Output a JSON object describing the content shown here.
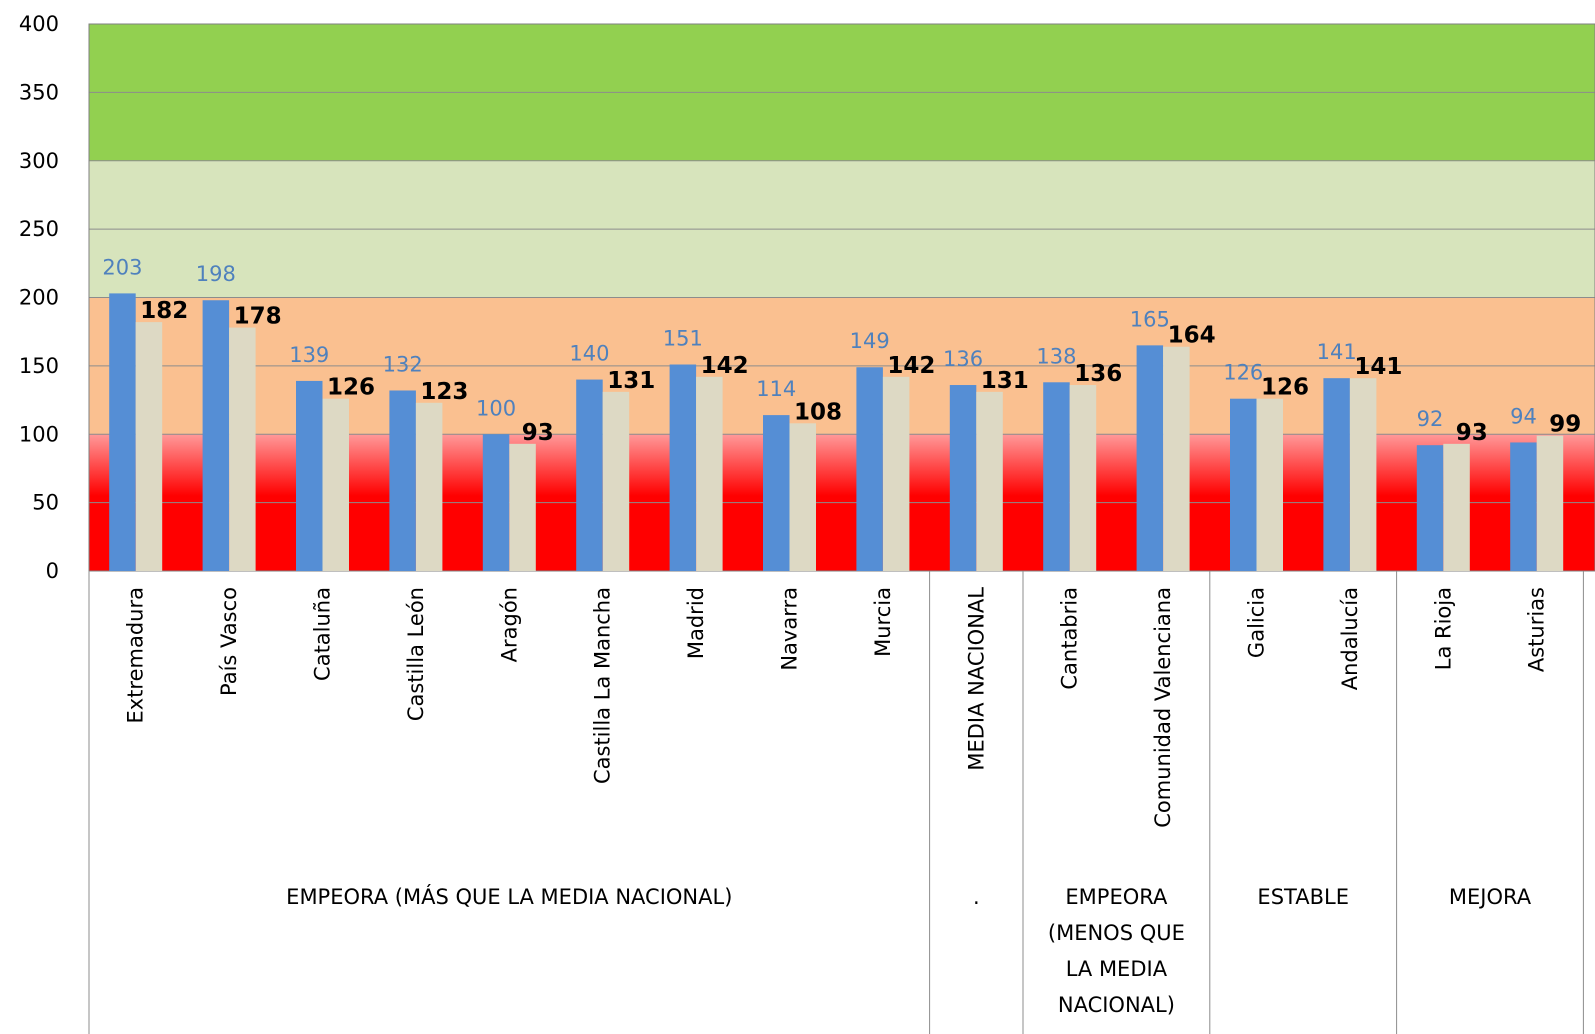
{
  "chart_data": {
    "type": "bar",
    "ylim": [
      0,
      400
    ],
    "yticks": [
      0,
      50,
      100,
      150,
      200,
      250,
      300,
      350,
      400
    ],
    "categories": [
      "Extremadura",
      "País Vasco",
      "Cataluña",
      "Castilla León",
      "Aragón",
      "Castilla La Mancha",
      "Madrid",
      "Navarra",
      "Murcia",
      "MEDIA NACIONAL",
      "Cantabria",
      "Comunidad Valenciana",
      "Galicia",
      "Andalucía",
      "La Rioja",
      "Asturias"
    ],
    "series": [
      {
        "values": [
          203,
          198,
          139,
          132,
          100,
          140,
          151,
          114,
          149,
          136,
          138,
          165,
          126,
          141,
          92,
          94
        ],
        "color": "#558ed5",
        "label_color": "#4f81bd"
      },
      {
        "values": [
          182,
          178,
          126,
          123,
          93,
          131,
          142,
          108,
          142,
          131,
          136,
          164,
          126,
          141,
          93,
          99
        ],
        "color": "#ddd9c4",
        "label_color": "#000000"
      }
    ],
    "groups": [
      {
        "label_lines": [
          "EMPEORA (MÁS QUE LA MEDIA NACIONAL)"
        ],
        "start": 0,
        "end": 8
      },
      {
        "label_lines": [
          "."
        ],
        "start": 9,
        "end": 9
      },
      {
        "label_lines": [
          "EMPEORA",
          "(MENOS QUE",
          "LA MEDIA",
          "NACIONAL)"
        ],
        "start": 10,
        "end": 11
      },
      {
        "label_lines": [
          "ESTABLE"
        ],
        "start": 12,
        "end": 13
      },
      {
        "label_lines": [
          "MEJORA"
        ],
        "start": 14,
        "end": 15
      }
    ],
    "background_bands": [
      {
        "from": 300,
        "to": 400,
        "color": "#92d050"
      },
      {
        "from": 200,
        "to": 300,
        "color": "#d7e4bc"
      },
      {
        "from": 100,
        "to": 200,
        "color": "#fac090"
      },
      {
        "from": 0,
        "to": 100,
        "color": "#ff0000",
        "gradient_top": "#ff9999"
      }
    ],
    "grid": true,
    "legend": "none"
  }
}
